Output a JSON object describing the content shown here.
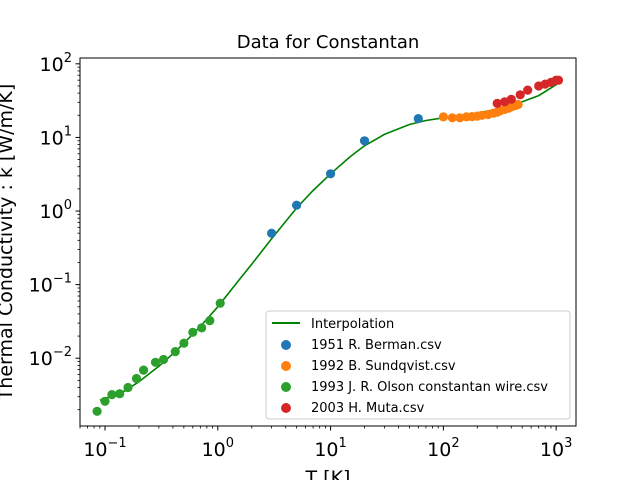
{
  "chart_data": {
    "type": "scatter",
    "title": "Data for Constantan",
    "xlabel": "T [K]",
    "ylabel": "Thermal Conductivity : k [W/m/K]",
    "xscale": "log",
    "yscale": "log",
    "xlim": [
      0.06,
      1500
    ],
    "ylim": [
      0.0012,
      120
    ],
    "x_ticks": [
      {
        "value": 0.1,
        "mantissa": "10",
        "exp": "−1"
      },
      {
        "value": 1,
        "mantissa": "10",
        "exp": "0"
      },
      {
        "value": 10,
        "mantissa": "10",
        "exp": "1"
      },
      {
        "value": 100,
        "mantissa": "10",
        "exp": "2"
      },
      {
        "value": 1000,
        "mantissa": "10",
        "exp": "3"
      }
    ],
    "y_ticks": [
      {
        "value": 0.01,
        "mantissa": "10",
        "exp": "−2"
      },
      {
        "value": 0.1,
        "mantissa": "10",
        "exp": "−1"
      },
      {
        "value": 1,
        "mantissa": "10",
        "exp": "0"
      },
      {
        "value": 10,
        "mantissa": "10",
        "exp": "1"
      },
      {
        "value": 100,
        "mantissa": "10",
        "exp": "2"
      }
    ],
    "grid": false,
    "legend_position": "lower-right",
    "interpolation": {
      "name": "Interpolation",
      "color": "#008000",
      "x": [
        0.09,
        0.12,
        0.15,
        0.2,
        0.3,
        0.4,
        0.5,
        0.7,
        1.0,
        1.5,
        2.0,
        3.0,
        5.0,
        7.0,
        10,
        15,
        20,
        30,
        50,
        70,
        100,
        150,
        200,
        300,
        400,
        500,
        700,
        1000,
        1100
      ],
      "y": [
        0.0027,
        0.0031,
        0.0036,
        0.0048,
        0.0078,
        0.0115,
        0.016,
        0.027,
        0.05,
        0.11,
        0.19,
        0.42,
        1.1,
        1.9,
        3.2,
        5.5,
        7.7,
        11.0,
        15.0,
        17.0,
        18.5,
        20.0,
        21.5,
        24.0,
        27.0,
        30.5,
        37.0,
        52.0,
        60.0
      ]
    },
    "series": [
      {
        "name": "1951 R. Berman.csv",
        "color": "#1f77b4",
        "x": [
          3.0,
          5.0,
          10,
          20,
          60
        ],
        "y": [
          0.5,
          1.2,
          3.2,
          9.0,
          18.0
        ]
      },
      {
        "name": "1992 B. Sundqvist.csv",
        "color": "#ff7f0e",
        "x": [
          100,
          120,
          140,
          160,
          180,
          200,
          220,
          250,
          280,
          300,
          320,
          350,
          380,
          400,
          430,
          460
        ],
        "y": [
          19.0,
          18.5,
          18.5,
          19.0,
          19.2,
          19.5,
          20.0,
          20.5,
          21.5,
          22.0,
          23.0,
          24.0,
          25.0,
          26.0,
          27.0,
          28.0
        ]
      },
      {
        "name": "1993 J. R. Olson constantan wire.csv",
        "color": "#2ca02c",
        "x": [
          0.085,
          0.1,
          0.115,
          0.135,
          0.16,
          0.19,
          0.22,
          0.28,
          0.33,
          0.42,
          0.5,
          0.6,
          0.72,
          0.85,
          1.05
        ],
        "y": [
          0.0019,
          0.0026,
          0.0032,
          0.0033,
          0.004,
          0.0053,
          0.0069,
          0.0088,
          0.0096,
          0.0123,
          0.016,
          0.0225,
          0.0258,
          0.0325,
          0.056
        ]
      },
      {
        "name": "2003 H. Muta.csv",
        "color": "#d62728",
        "x": [
          300,
          350,
          400,
          480,
          560,
          700,
          800,
          900,
          1000,
          1050
        ],
        "y": [
          29.0,
          30.5,
          33.0,
          38.0,
          44.0,
          50.0,
          53.0,
          56.0,
          60.0,
          60.0
        ]
      }
    ]
  }
}
